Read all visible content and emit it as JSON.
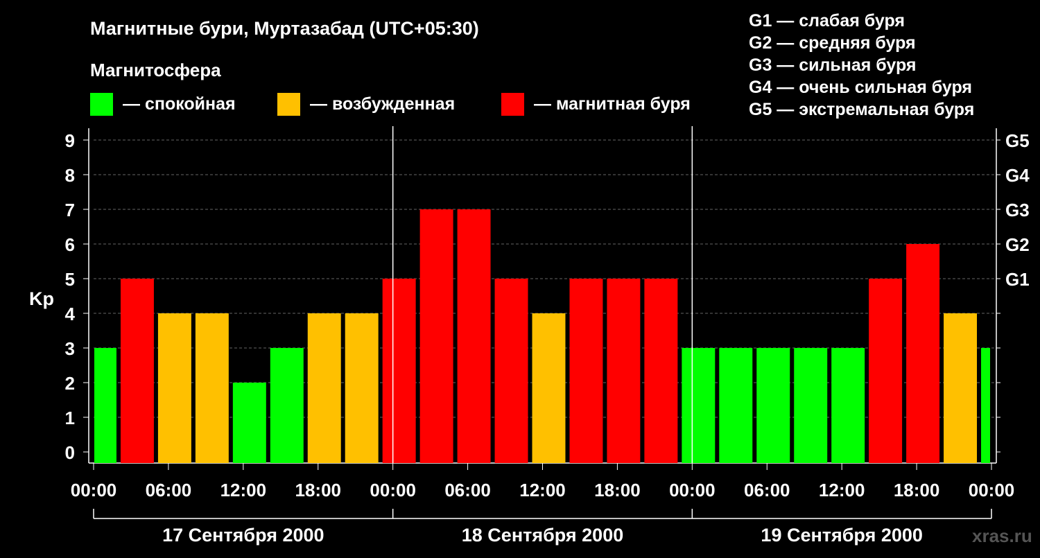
{
  "chart_data": {
    "type": "bar",
    "title": "Магнитные бури, Муртазабад (UTC+05:30)",
    "legend_title": "Магнитосфера",
    "legend": [
      {
        "label": "— спокойная",
        "color": "#00ff00"
      },
      {
        "label": "— возбужденная",
        "color": "#ffc000"
      },
      {
        "label": "— магнитная буря",
        "color": "#ff0000"
      }
    ],
    "g_scale": [
      "G1 — слабая буря",
      "G2 — средняя буря",
      "G3 — сильная буря",
      "G4 — очень сильная буря",
      "G5 — экстремальная буря"
    ],
    "ylabel": "Kp",
    "ylim": [
      0,
      9
    ],
    "yticks": [
      "0",
      "1",
      "2",
      "3",
      "4",
      "5",
      "6",
      "7",
      "8",
      "9"
    ],
    "right_ticks": [
      "G1",
      "G2",
      "G3",
      "G4",
      "G5"
    ],
    "xticks": [
      "00:00",
      "06:00",
      "12:00",
      "18:00",
      "00:00",
      "06:00",
      "12:00",
      "18:00",
      "00:00",
      "06:00",
      "12:00",
      "18:00",
      "00:00"
    ],
    "days": [
      "17 Сентября 2000",
      "18 Сентября 2000",
      "19 Сентября 2000"
    ],
    "bar_start_hours": [
      0,
      2,
      5,
      8,
      11,
      14,
      17,
      20,
      23,
      26,
      29,
      32,
      35,
      38,
      41,
      44,
      47,
      50,
      53,
      56,
      59,
      62,
      65,
      68,
      71
    ],
    "bar_end_hours": [
      2,
      5,
      8,
      11,
      14,
      17,
      20,
      23,
      26,
      29,
      32,
      35,
      38,
      41,
      44,
      47,
      50,
      53,
      56,
      59,
      62,
      65,
      68,
      71,
      72
    ],
    "values": [
      3,
      5,
      4,
      4,
      2,
      3,
      4,
      4,
      5,
      7,
      7,
      5,
      4,
      5,
      5,
      5,
      3,
      3,
      3,
      3,
      3,
      5,
      6,
      4,
      3
    ],
    "colors": {
      "quiet": "#00ff00",
      "active": "#ffc000",
      "storm": "#ff0000"
    },
    "watermark": "xras.ru"
  }
}
